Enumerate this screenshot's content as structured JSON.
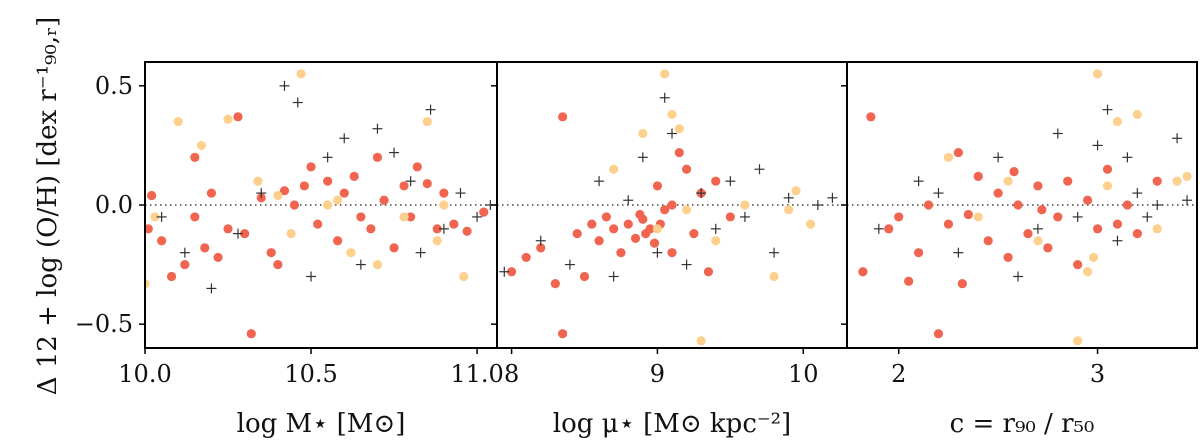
{
  "chart_data": {
    "type": "scatter",
    "ylabel": "Δ 12 + log (O/H) [dex r⁻¹₉₀,ᵣ]",
    "ylim": [
      -0.6,
      0.6
    ],
    "yticks": [
      -0.5,
      0.0,
      0.5
    ],
    "ytick_labels": [
      "−0.5",
      "0.0",
      "0.5"
    ],
    "reference_line_y": 0.0,
    "colors": {
      "series_red": "#f06450",
      "series_light": "#fdd08e",
      "series_cross": "#333333",
      "reference_line": "#444444"
    },
    "panels": [
      {
        "xlabel": "log M⋆ [M⊙]",
        "xlim": [
          10.0,
          11.06
        ],
        "xticks": [
          10.0,
          10.5,
          11.0
        ],
        "xtick_labels": [
          "10.0",
          "10.5",
          "11.0"
        ],
        "series": [
          {
            "marker": "circle",
            "color": "#f06450",
            "points": [
              [
                10.02,
                0.04
              ],
              [
                10.01,
                -0.1
              ],
              [
                10.05,
                -0.15
              ],
              [
                10.08,
                -0.3
              ],
              [
                10.12,
                -0.25
              ],
              [
                10.15,
                -0.05
              ],
              [
                10.18,
                -0.18
              ],
              [
                10.2,
                0.05
              ],
              [
                10.22,
                -0.22
              ],
              [
                10.25,
                -0.1
              ],
              [
                10.28,
                0.37
              ],
              [
                10.3,
                -0.12
              ],
              [
                10.32,
                -0.54
              ],
              [
                10.35,
                0.03
              ],
              [
                10.38,
                -0.2
              ],
              [
                10.42,
                0.06
              ],
              [
                10.45,
                0.0
              ],
              [
                10.48,
                0.08
              ],
              [
                10.5,
                0.16
              ],
              [
                10.52,
                -0.08
              ],
              [
                10.55,
                0.1
              ],
              [
                10.58,
                -0.15
              ],
              [
                10.6,
                0.05
              ],
              [
                10.63,
                0.12
              ],
              [
                10.65,
                -0.05
              ],
              [
                10.68,
                -0.1
              ],
              [
                10.7,
                0.2
              ],
              [
                10.72,
                0.02
              ],
              [
                10.75,
                -0.18
              ],
              [
                10.78,
                0.08
              ],
              [
                10.8,
                -0.05
              ],
              [
                10.82,
                0.16
              ],
              [
                10.85,
                0.09
              ],
              [
                10.88,
                -0.1
              ],
              [
                10.9,
                0.05
              ],
              [
                10.93,
                -0.08
              ],
              [
                10.97,
                -0.11
              ],
              [
                11.02,
                -0.03
              ],
              [
                10.15,
                0.2
              ],
              [
                10.4,
                -0.25
              ]
            ]
          },
          {
            "marker": "circle",
            "color": "#fdd08e",
            "points": [
              [
                10.0,
                -0.33
              ],
              [
                10.03,
                -0.05
              ],
              [
                10.1,
                0.35
              ],
              [
                10.17,
                0.25
              ],
              [
                10.25,
                0.36
              ],
              [
                10.34,
                0.1
              ],
              [
                10.4,
                0.04
              ],
              [
                10.44,
                -0.12
              ],
              [
                10.47,
                0.55
              ],
              [
                10.55,
                0.0
              ],
              [
                10.62,
                -0.2
              ],
              [
                10.7,
                -0.25
              ],
              [
                10.78,
                -0.05
              ],
              [
                10.85,
                0.35
              ],
              [
                10.9,
                0.0
              ],
              [
                10.96,
                -0.3
              ],
              [
                10.88,
                -0.15
              ],
              [
                10.58,
                0.02
              ]
            ]
          },
          {
            "marker": "cross",
            "color": "#333333",
            "points": [
              [
                10.05,
                -0.05
              ],
              [
                10.12,
                -0.2
              ],
              [
                10.2,
                -0.35
              ],
              [
                10.28,
                -0.12
              ],
              [
                10.35,
                0.05
              ],
              [
                10.42,
                0.5
              ],
              [
                10.46,
                0.43
              ],
              [
                10.5,
                -0.3
              ],
              [
                10.55,
                0.2
              ],
              [
                10.6,
                0.28
              ],
              [
                10.65,
                -0.25
              ],
              [
                10.7,
                0.32
              ],
              [
                10.75,
                0.22
              ],
              [
                10.8,
                0.1
              ],
              [
                10.83,
                -0.2
              ],
              [
                10.86,
                0.4
              ],
              [
                10.9,
                -0.1
              ],
              [
                10.95,
                0.05
              ],
              [
                11.0,
                -0.05
              ],
              [
                11.04,
                0.0
              ]
            ]
          }
        ]
      },
      {
        "xlabel": "log μ⋆ [M⊙ kpc⁻²]",
        "xlim": [
          7.9,
          10.3
        ],
        "xticks": [
          8,
          9,
          10
        ],
        "xtick_labels": [
          "8",
          "9",
          "10"
        ],
        "series": [
          {
            "marker": "circle",
            "color": "#f06450",
            "points": [
              [
                8.0,
                -0.28
              ],
              [
                8.1,
                -0.22
              ],
              [
                8.2,
                -0.18
              ],
              [
                8.3,
                -0.33
              ],
              [
                8.35,
                -0.54
              ],
              [
                8.35,
                0.37
              ],
              [
                8.45,
                -0.12
              ],
              [
                8.5,
                -0.3
              ],
              [
                8.55,
                -0.08
              ],
              [
                8.6,
                -0.15
              ],
              [
                8.65,
                -0.05
              ],
              [
                8.7,
                -0.1
              ],
              [
                8.75,
                -0.2
              ],
              [
                8.8,
                -0.08
              ],
              [
                8.85,
                -0.14
              ],
              [
                8.9,
                -0.06
              ],
              [
                8.95,
                -0.1
              ],
              [
                9.0,
                0.08
              ],
              [
                9.05,
                -0.02
              ],
              [
                9.1,
                0.0
              ],
              [
                9.1,
                -0.2
              ],
              [
                9.15,
                0.22
              ],
              [
                9.2,
                0.15
              ],
              [
                9.25,
                -0.12
              ],
              [
                9.3,
                0.05
              ],
              [
                9.35,
                -0.28
              ],
              [
                9.4,
                0.1
              ],
              [
                9.5,
                -0.05
              ],
              [
                8.92,
                -0.12
              ],
              [
                8.88,
                -0.04
              ],
              [
                8.98,
                -0.16
              ],
              [
                9.02,
                -0.08
              ]
            ]
          },
          {
            "marker": "circle",
            "color": "#fdd08e",
            "points": [
              [
                8.7,
                0.15
              ],
              [
                8.9,
                0.3
              ],
              [
                9.0,
                -0.1
              ],
              [
                9.05,
                0.55
              ],
              [
                9.1,
                0.38
              ],
              [
                9.15,
                0.32
              ],
              [
                9.2,
                -0.02
              ],
              [
                9.3,
                -0.57
              ],
              [
                9.4,
                -0.15
              ],
              [
                9.6,
                0.0
              ],
              [
                9.8,
                -0.3
              ],
              [
                9.9,
                -0.02
              ],
              [
                9.95,
                0.06
              ],
              [
                10.05,
                -0.08
              ]
            ]
          },
          {
            "marker": "cross",
            "color": "#333333",
            "points": [
              [
                7.95,
                -0.28
              ],
              [
                8.2,
                -0.15
              ],
              [
                8.4,
                -0.25
              ],
              [
                8.6,
                0.1
              ],
              [
                8.7,
                -0.3
              ],
              [
                8.8,
                0.02
              ],
              [
                8.9,
                0.2
              ],
              [
                9.0,
                -0.2
              ],
              [
                9.05,
                0.45
              ],
              [
                9.1,
                0.3
              ],
              [
                9.2,
                -0.25
              ],
              [
                9.3,
                0.05
              ],
              [
                9.4,
                -0.1
              ],
              [
                9.5,
                0.1
              ],
              [
                9.6,
                -0.05
              ],
              [
                9.7,
                0.15
              ],
              [
                9.8,
                -0.2
              ],
              [
                9.9,
                0.03
              ],
              [
                10.1,
                0.0
              ],
              [
                10.2,
                0.03
              ]
            ]
          }
        ]
      },
      {
        "xlabel": "c = r₉₀ / r₅₀",
        "xlim": [
          1.74,
          3.5
        ],
        "xticks": [
          2,
          3
        ],
        "xtick_labels": [
          "2",
          "3"
        ],
        "series": [
          {
            "marker": "circle",
            "color": "#f06450",
            "points": [
              [
                1.82,
                -0.28
              ],
              [
                1.86,
                0.37
              ],
              [
                1.95,
                -0.1
              ],
              [
                2.0,
                -0.05
              ],
              [
                2.05,
                -0.32
              ],
              [
                2.1,
                -0.2
              ],
              [
                2.15,
                0.0
              ],
              [
                2.2,
                -0.54
              ],
              [
                2.25,
                -0.08
              ],
              [
                2.3,
                0.22
              ],
              [
                2.32,
                -0.33
              ],
              [
                2.4,
                0.12
              ],
              [
                2.45,
                -0.15
              ],
              [
                2.5,
                0.05
              ],
              [
                2.55,
                -0.22
              ],
              [
                2.6,
                0.0
              ],
              [
                2.65,
                -0.12
              ],
              [
                2.7,
                0.08
              ],
              [
                2.75,
                -0.18
              ],
              [
                2.8,
                -0.05
              ],
              [
                2.85,
                0.1
              ],
              [
                2.9,
                -0.25
              ],
              [
                2.95,
                0.02
              ],
              [
                3.0,
                -0.1
              ],
              [
                3.05,
                0.15
              ],
              [
                3.1,
                -0.08
              ],
              [
                3.15,
                0.0
              ],
              [
                3.2,
                -0.12
              ],
              [
                3.3,
                0.1
              ],
              [
                2.35,
                -0.04
              ],
              [
                2.58,
                0.14
              ],
              [
                2.72,
                -0.02
              ]
            ]
          },
          {
            "marker": "circle",
            "color": "#fdd08e",
            "points": [
              [
                2.25,
                0.2
              ],
              [
                2.4,
                -0.05
              ],
              [
                2.55,
                0.1
              ],
              [
                2.7,
                -0.15
              ],
              [
                2.9,
                -0.57
              ],
              [
                2.95,
                -0.28
              ],
              [
                3.0,
                0.55
              ],
              [
                3.05,
                0.08
              ],
              [
                3.1,
                0.35
              ],
              [
                3.2,
                0.38
              ],
              [
                3.3,
                -0.1
              ],
              [
                3.4,
                0.1
              ],
              [
                3.45,
                0.12
              ],
              [
                2.98,
                -0.22
              ]
            ]
          },
          {
            "marker": "cross",
            "color": "#333333",
            "points": [
              [
                1.9,
                -0.1
              ],
              [
                2.1,
                0.1
              ],
              [
                2.3,
                -0.2
              ],
              [
                2.5,
                0.2
              ],
              [
                2.7,
                -0.1
              ],
              [
                2.8,
                0.3
              ],
              [
                2.9,
                -0.05
              ],
              [
                3.0,
                0.25
              ],
              [
                3.05,
                0.4
              ],
              [
                3.1,
                -0.15
              ],
              [
                3.15,
                0.2
              ],
              [
                3.2,
                0.05
              ],
              [
                3.3,
                0.0
              ],
              [
                3.4,
                0.28
              ],
              [
                3.45,
                0.02
              ],
              [
                2.6,
                -0.3
              ],
              [
                2.2,
                0.05
              ],
              [
                3.25,
                -0.05
              ]
            ]
          }
        ]
      }
    ]
  }
}
